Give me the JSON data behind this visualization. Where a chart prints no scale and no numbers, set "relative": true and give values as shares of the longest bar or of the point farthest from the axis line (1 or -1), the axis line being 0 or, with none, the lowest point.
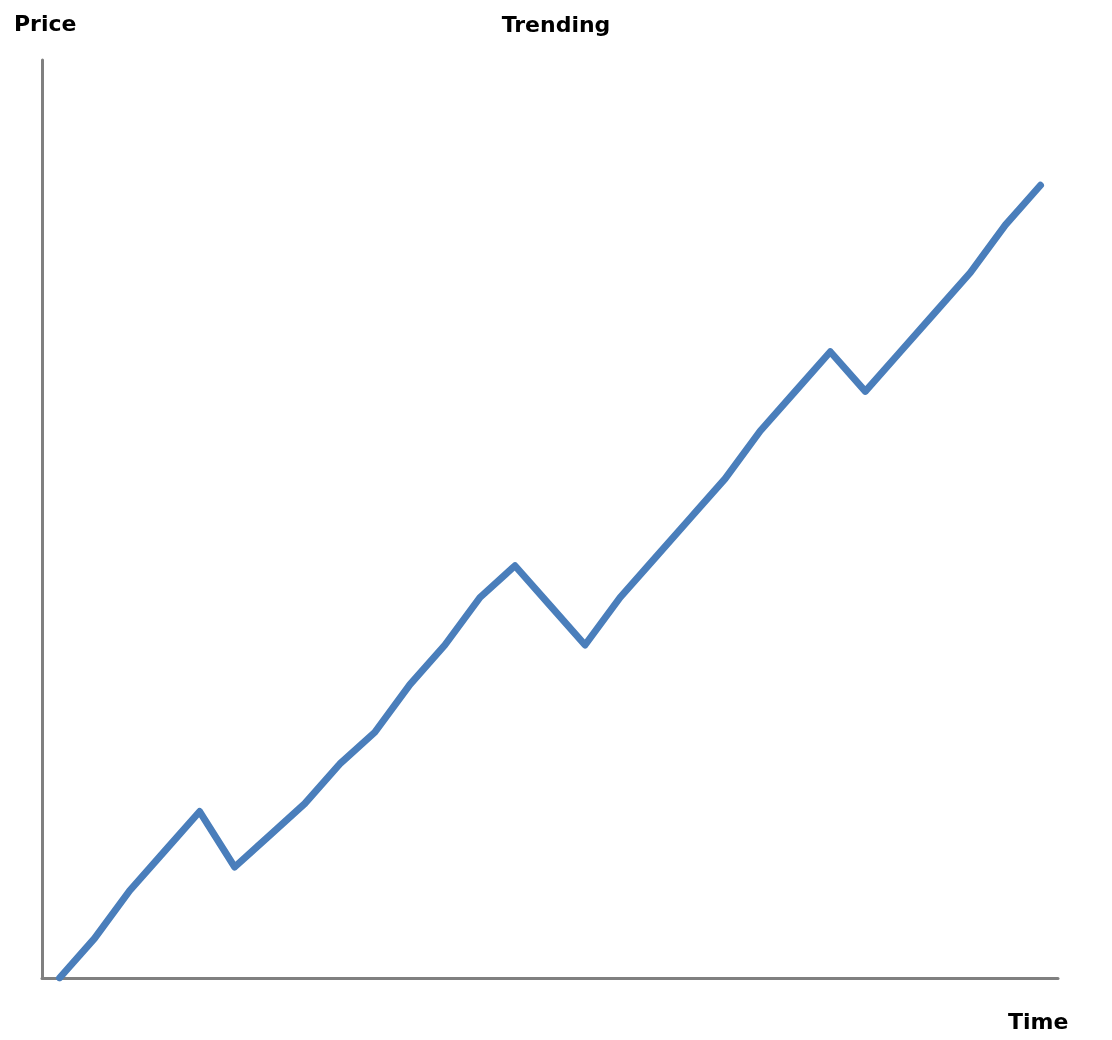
{
  "chart_data": {
    "type": "line",
    "title": "Trending",
    "xlabel": "Time",
    "annotations": [
      "Price"
    ],
    "relative": true,
    "grid": false,
    "marker": "none",
    "line_style": "solid",
    "categories": [
      null,
      null,
      null,
      null,
      null,
      null,
      null,
      null,
      null,
      null,
      null,
      null,
      null,
      null,
      null,
      null,
      null,
      null,
      null,
      null,
      null,
      null,
      null,
      null,
      null,
      null,
      null,
      null,
      null
    ],
    "series": [
      {
        "color": "#4a7ebb",
        "values": [
          0,
          0.05,
          0.11,
          0.16,
          0.21,
          0.14,
          0.18,
          0.22,
          0.27,
          0.31,
          0.37,
          0.42,
          0.48,
          0.52,
          0.47,
          0.42,
          0.48,
          0.53,
          0.58,
          0.63,
          0.69,
          0.74,
          0.79,
          0.74,
          0.79,
          0.84,
          0.89,
          0.95,
          1
        ]
      }
    ]
  }
}
